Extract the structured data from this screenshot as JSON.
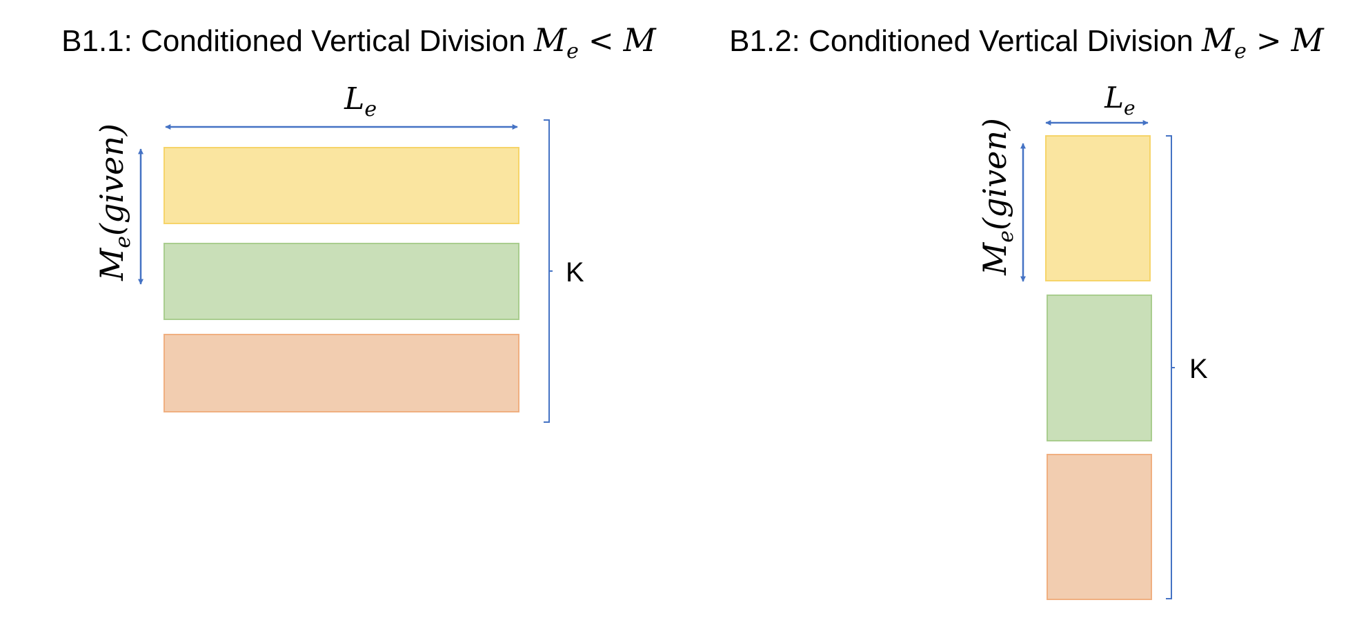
{
  "colors": {
    "arrow": "#4472C4",
    "yellow_fill": "#FAE5A0",
    "yellow_stroke": "#F6D469",
    "green_fill": "#C9DFB8",
    "green_stroke": "#A9CD8E",
    "orange_fill": "#F2CDB0",
    "orange_stroke": "#F0AF80"
  },
  "panel_left": {
    "title_prefix": "B1.1: Conditioned Vertical Division ",
    "title_math_base": "M",
    "title_math_sub": "e",
    "title_relation": " < ",
    "title_rhs": "M",
    "width_label_base": "L",
    "width_label_sub": "e",
    "height_label_base": "M",
    "height_label_sub": "e",
    "height_label_rest": "(given)",
    "k_label": "K",
    "blocks": [
      "yellow",
      "green",
      "orange"
    ]
  },
  "panel_right": {
    "title_prefix": "B1.2: Conditioned Vertical Division ",
    "title_math_base": "M",
    "title_math_sub": "e",
    "title_relation": " > ",
    "title_rhs": "M",
    "width_label_base": "L",
    "width_label_sub": "e",
    "height_label_base": "M",
    "height_label_sub": "e",
    "height_label_rest": "(given)",
    "k_label": "K",
    "blocks": [
      "yellow",
      "green",
      "orange"
    ]
  }
}
